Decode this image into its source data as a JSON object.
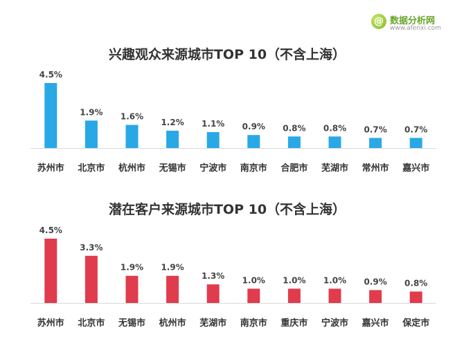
{
  "logo": {
    "mark": "@",
    "name": "数据分析网",
    "url": "www.afenxi.com"
  },
  "chart_data": [
    {
      "type": "bar",
      "title": "兴趣观众来源城市TOP 10（不含上海）",
      "categories": [
        "苏州市",
        "北京市",
        "杭州市",
        "无锡市",
        "宁波市",
        "南京市",
        "合肥市",
        "芜湖市",
        "常州市",
        "嘉兴市"
      ],
      "values": [
        4.5,
        1.9,
        1.6,
        1.2,
        1.1,
        0.9,
        0.8,
        0.8,
        0.7,
        0.7
      ],
      "labels": [
        "4.5%",
        "1.9%",
        "1.6%",
        "1.2%",
        "1.1%",
        "0.9%",
        "0.8%",
        "0.8%",
        "0.7%",
        "0.7%"
      ],
      "unit": "%",
      "color": "#29a8e6",
      "ylim": [
        0,
        4.5
      ],
      "grid": false,
      "legend": "none"
    },
    {
      "type": "bar",
      "title": "潜在客户来源城市TOP 10（不含上海）",
      "categories": [
        "苏州市",
        "北京市",
        "无锡市",
        "杭州市",
        "芜湖市",
        "南京市",
        "重庆市",
        "宁波市",
        "嘉兴市",
        "保定市"
      ],
      "values": [
        4.5,
        3.3,
        1.9,
        1.9,
        1.3,
        1.0,
        1.0,
        1.0,
        0.9,
        0.8
      ],
      "labels": [
        "4.5%",
        "3.3%",
        "1.9%",
        "1.9%",
        "1.3%",
        "1.0%",
        "1.0%",
        "1.0%",
        "0.9%",
        "0.8%"
      ],
      "unit": "%",
      "color": "#e03c4e",
      "ylim": [
        0,
        4.5
      ],
      "grid": false,
      "legend": "none"
    }
  ]
}
